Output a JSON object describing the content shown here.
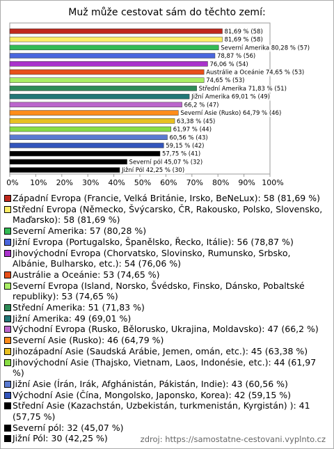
{
  "chart_data": {
    "type": "bar",
    "orientation": "horizontal",
    "title": "Muž může cestovat sám do těchto zemí:",
    "categories": [
      "Západní Evropa (Francie, Velká Británie, Irsko, BeNeLux): 58 (81,69 %)",
      "Střední Evropa (Německo, Švýcarsko, ČR, Rakousko, Polsko, Slovensko, Maďarsko): 58 (81,69 %)",
      "Severní Amerika: 57 (80,28 %)",
      "Jižní Evropa (Portugalsko, Španělsko, Řecko, Itálie): 56 (78,87 %)",
      "Jihovýchodní Evropa (Chorvatsko, Slovinsko, Rumunsko, Srbsko, Albánie, Bulharsko, etc.): 54 (76,06 %)",
      "Austrálie a Oceánie: 53 (74,65 %)",
      "Severní Evropa (Island, Norsko, Švédsko, Finsko, Dánsko, Pobaltské republiky): 53 (74,65 %)",
      "Střední Amerika: 51 (71,83 %)",
      "Jižní Amerika: 49 (69,01 %)",
      "Východní Evropa (Rusko, Bělorusko, Ukrajina, Moldavsko): 47 (66,2 %)",
      "Severní Asie (Rusko): 46 (64,79 %)",
      "Jihozápadní Asie (Saudská Arábie, Jemen, omán, etc.): 45 (63,38 %)",
      "Jihovýchodní Asie (Thajsko, Vietnam, Laos, Indonésie, etc.): 44 (61,97 %)",
      "Jižní Asie (Írán, Irák, Afghánistán, Pákistán, Indie): 43 (60,56 %)",
      "Východní Asie (Čína, Mongolsko, Japonsko, Korea): 42 (59,15 %)",
      "Střední Asie (Kazachstán, Uzbekistán, turkmenistán, Kyrgistán) ): 41 (57,75 %)",
      "Severní pól: 32 (45,07 %)",
      "Jižní Pól: 30 (42,25 %)"
    ],
    "values": [
      81.69,
      81.69,
      80.28,
      78.87,
      76.06,
      74.65,
      74.65,
      71.83,
      69.01,
      66.2,
      64.79,
      63.38,
      61.97,
      60.56,
      59.15,
      57.75,
      45.07,
      42.25
    ],
    "value_labels": [
      "81,69 % (58)",
      "81,69 % (58)",
      "Severní Amerika 80,28 % (57)",
      "78,87 % (56)",
      "76,06 % (54)",
      "Austrálie a Oceánie 74,65 % (53)",
      "74,65 % (53)",
      "Střední Amerika 71,83 % (51)",
      "Jižní Amerika 69,01 % (49)",
      "66,2 % (47)",
      "Severní Asie (Rusko) 64,79 % (46)",
      "63,38 % (45)",
      "61,97 % (44)",
      "60,56 % (43)",
      "59,15 % (42)",
      "57,75 % (41)",
      "Severní pól 45,07 % (32)",
      "Jižní Pól 42,25 % (30)"
    ],
    "colors": [
      "#c0281c",
      "#ffee66",
      "#33bb55",
      "#4a66dd",
      "#aa33cc",
      "#e8501a",
      "#aaee66",
      "#2e8b57",
      "#227777",
      "#bb66cc",
      "#ff8c1a",
      "#e8c020",
      "#88dd44",
      "#5a7ad0",
      "#3355bb",
      "#000000",
      "#000000",
      "#000000"
    ],
    "xlim": [
      0,
      100
    ],
    "xticks": [
      {
        "value": 0,
        "label": "0%"
      },
      {
        "value": 10,
        "label": "10%"
      },
      {
        "value": 20,
        "label": "20%"
      },
      {
        "value": 30,
        "label": "30%"
      },
      {
        "value": 40,
        "label": "40%"
      },
      {
        "value": 50,
        "label": "50%"
      },
      {
        "value": 60,
        "label": "60%"
      },
      {
        "value": 70,
        "label": "70%"
      },
      {
        "value": 80,
        "label": "80%"
      },
      {
        "value": 90,
        "label": "90%"
      },
      {
        "value": 100,
        "label": "100%"
      }
    ],
    "grid": false,
    "source": "zdroj: https://samostatne-cestovani.vyplnto.cz"
  }
}
